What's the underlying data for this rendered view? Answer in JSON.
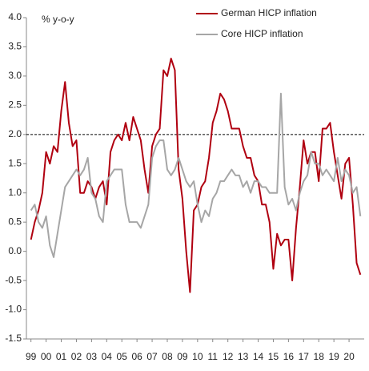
{
  "chart_data": {
    "type": "line",
    "y_label": "% y-o-y",
    "x": [
      1999,
      1999.25,
      1999.5,
      1999.75,
      2000,
      2000.25,
      2000.5,
      2000.75,
      2001,
      2001.25,
      2001.5,
      2001.75,
      2002,
      2002.25,
      2002.5,
      2002.75,
      2003,
      2003.25,
      2003.5,
      2003.75,
      2004,
      2004.25,
      2004.5,
      2004.75,
      2005,
      2005.25,
      2005.5,
      2005.75,
      2006,
      2006.25,
      2006.5,
      2006.75,
      2007,
      2007.25,
      2007.5,
      2007.75,
      2008,
      2008.25,
      2008.5,
      2008.75,
      2009,
      2009.25,
      2009.5,
      2009.75,
      2010,
      2010.25,
      2010.5,
      2010.75,
      2011,
      2011.25,
      2011.5,
      2011.75,
      2012,
      2012.25,
      2012.5,
      2012.75,
      2013,
      2013.25,
      2013.5,
      2013.75,
      2014,
      2014.25,
      2014.5,
      2014.75,
      2015,
      2015.25,
      2015.5,
      2015.75,
      2016,
      2016.25,
      2016.5,
      2016.75,
      2017,
      2017.25,
      2017.5,
      2017.75,
      2018,
      2018.25,
      2018.5,
      2018.75,
      2019,
      2019.25,
      2019.5,
      2019.75,
      2020,
      2020.25,
      2020.5,
      2020.75
    ],
    "series": [
      {
        "name": "German HICP inflation",
        "color": "#b00010",
        "width": 2,
        "values": [
          0.2,
          0.5,
          0.7,
          1.0,
          1.7,
          1.5,
          1.8,
          1.7,
          2.4,
          2.9,
          2.2,
          1.8,
          1.9,
          1.0,
          1.0,
          1.2,
          1.1,
          0.9,
          1.1,
          1.2,
          0.8,
          1.7,
          1.9,
          2.0,
          1.9,
          2.2,
          1.9,
          2.3,
          2.1,
          1.9,
          1.4,
          1.0,
          1.8,
          2.0,
          2.1,
          3.1,
          3.0,
          3.3,
          3.1,
          1.4,
          0.9,
          0.0,
          -0.7,
          0.7,
          0.8,
          1.1,
          1.2,
          1.6,
          2.2,
          2.4,
          2.7,
          2.6,
          2.4,
          2.1,
          2.1,
          2.1,
          1.8,
          1.6,
          1.6,
          1.3,
          1.2,
          0.8,
          0.8,
          0.5,
          -0.3,
          0.3,
          0.1,
          0.2,
          0.2,
          -0.5,
          0.4,
          1.1,
          1.9,
          1.5,
          1.7,
          1.7,
          1.2,
          2.1,
          2.1,
          2.2,
          1.7,
          1.3,
          0.9,
          1.5,
          1.6,
          0.8,
          -0.2,
          -0.4
        ]
      },
      {
        "name": "Core HICP inflation",
        "color": "#a6a6a6",
        "width": 2,
        "values": [
          0.7,
          0.8,
          0.5,
          0.4,
          0.6,
          0.1,
          -0.1,
          0.3,
          0.7,
          1.1,
          1.2,
          1.3,
          1.4,
          1.3,
          1.4,
          1.6,
          1.0,
          0.9,
          0.6,
          0.5,
          1.2,
          1.3,
          1.4,
          1.4,
          1.4,
          0.8,
          0.5,
          0.5,
          0.5,
          0.4,
          0.6,
          0.8,
          1.6,
          1.8,
          1.9,
          1.9,
          1.4,
          1.3,
          1.4,
          1.6,
          1.4,
          1.2,
          1.1,
          1.2,
          0.8,
          0.5,
          0.7,
          0.6,
          0.9,
          1.0,
          1.2,
          1.2,
          1.3,
          1.4,
          1.3,
          1.3,
          1.1,
          1.2,
          1.0,
          1.2,
          1.2,
          1.1,
          1.1,
          1.0,
          1.0,
          1.0,
          2.7,
          1.1,
          0.8,
          0.9,
          0.7,
          1.0,
          1.2,
          1.3,
          1.7,
          1.5,
          1.5,
          1.3,
          1.4,
          1.3,
          1.2,
          1.6,
          1.2,
          1.4,
          1.3,
          1.0,
          1.1,
          0.6
        ]
      }
    ],
    "reference_line": 2,
    "xlim": [
      1998.7,
      2021.0
    ],
    "xticks": [
      {
        "value": 1999,
        "label": "99"
      },
      {
        "value": 2000,
        "label": "00"
      },
      {
        "value": 2001,
        "label": "01"
      },
      {
        "value": 2002,
        "label": "02"
      },
      {
        "value": 2003,
        "label": "03"
      },
      {
        "value": 2004,
        "label": "04"
      },
      {
        "value": 2005,
        "label": "05"
      },
      {
        "value": 2006,
        "label": "06"
      },
      {
        "value": 2007,
        "label": "07"
      },
      {
        "value": 2008,
        "label": "08"
      },
      {
        "value": 2009,
        "label": "09"
      },
      {
        "value": 2010,
        "label": "10"
      },
      {
        "value": 2011,
        "label": "11"
      },
      {
        "value": 2012,
        "label": "12"
      },
      {
        "value": 2013,
        "label": "13"
      },
      {
        "value": 2014,
        "label": "14"
      },
      {
        "value": 2015,
        "label": "15"
      },
      {
        "value": 2016,
        "label": "16"
      },
      {
        "value": 2017,
        "label": "17"
      },
      {
        "value": 2018,
        "label": "18"
      },
      {
        "value": 2019,
        "label": "19"
      },
      {
        "value": 2020,
        "label": "20"
      }
    ],
    "ylim": [
      -1.5,
      4
    ],
    "yticks": [
      {
        "value": 4,
        "label": "4.0"
      },
      3.5,
      {
        "value": 3,
        "label": "3.0"
      },
      2.5,
      {
        "value": 2,
        "label": "2.0"
      },
      1.5,
      {
        "value": 1,
        "label": "1.0"
      },
      0.5,
      {
        "value": 0,
        "label": "0.0"
      },
      -0.5,
      {
        "value": -1,
        "label": "-1.0"
      },
      -1.5
    ]
  }
}
